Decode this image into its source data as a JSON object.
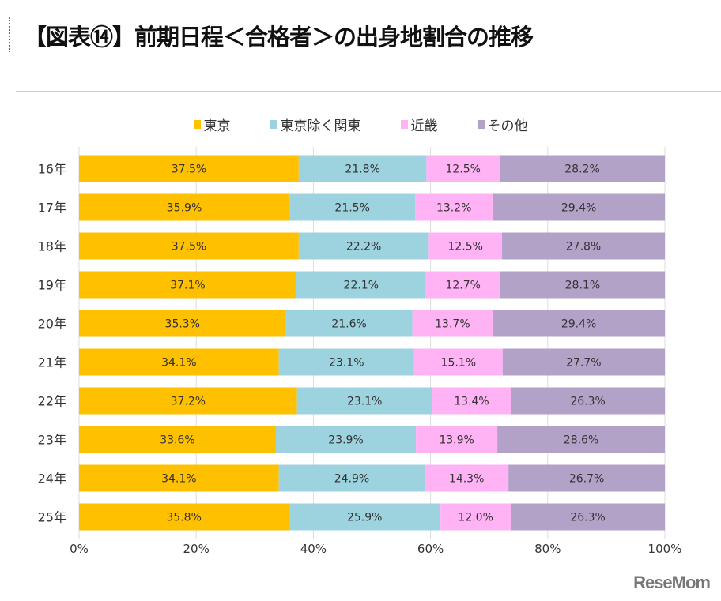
{
  "title": "【図表⑭】前期日程＜合格者＞の出身地割合の推移",
  "logo": "ReseMom",
  "chart_data": {
    "type": "bar",
    "orientation": "horizontal",
    "stacked": true,
    "categories": [
      "16年",
      "17年",
      "18年",
      "19年",
      "20年",
      "21年",
      "22年",
      "23年",
      "24年",
      "25年"
    ],
    "series": [
      {
        "name": "東京",
        "color": "#FFC000",
        "values": [
          37.5,
          35.9,
          37.5,
          37.1,
          35.3,
          34.1,
          37.2,
          33.6,
          34.1,
          35.8
        ]
      },
      {
        "name": "東京除く関東",
        "color": "#9DD3DF",
        "values": [
          21.8,
          21.5,
          22.2,
          22.1,
          21.6,
          23.1,
          23.1,
          23.9,
          24.9,
          25.9
        ]
      },
      {
        "name": "近畿",
        "color": "#FFB3F5",
        "values": [
          12.5,
          13.2,
          12.5,
          12.7,
          13.7,
          15.1,
          13.4,
          13.9,
          14.3,
          12.0
        ]
      },
      {
        "name": "その他",
        "color": "#B3A2C8",
        "values": [
          28.2,
          29.4,
          27.8,
          28.1,
          29.4,
          27.7,
          26.3,
          28.6,
          26.7,
          26.3
        ]
      }
    ],
    "xticks": [
      "0%",
      "20%",
      "40%",
      "60%",
      "80%",
      "100%"
    ],
    "xlim": [
      0,
      100
    ],
    "grid": true,
    "legend": "top"
  }
}
